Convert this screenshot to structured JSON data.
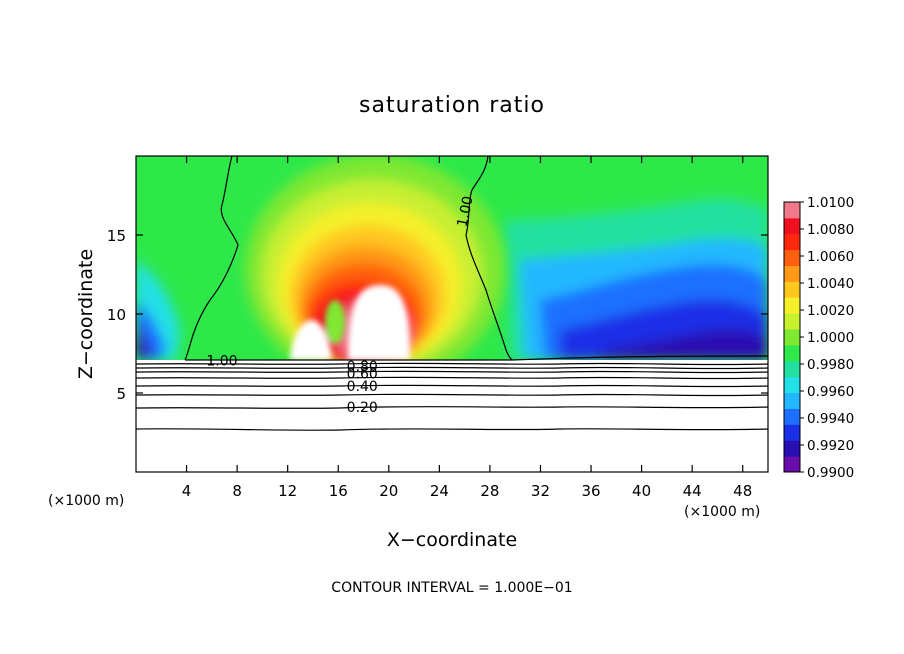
{
  "chart_data": {
    "type": "heatmap",
    "title": "saturation ratio",
    "xlabel": "X−coordinate",
    "ylabel": "Z−coordinate",
    "x_unit_left": "(×1000 m)",
    "x_unit_right": "(×1000 m)",
    "xlim": [
      0,
      50
    ],
    "ylim": [
      0,
      20
    ],
    "x_ticks": [
      4,
      8,
      12,
      16,
      20,
      24,
      28,
      32,
      36,
      40,
      44,
      48
    ],
    "y_ticks": [
      5,
      10,
      15
    ],
    "colorbar": {
      "min": 0.99,
      "max": 1.01,
      "tick_labels": [
        "1.0100",
        "1.0080",
        "1.0060",
        "1.0040",
        "1.0020",
        "1.0000",
        "0.9980",
        "0.9960",
        "0.9940",
        "0.9920",
        "0.9900"
      ],
      "colors": [
        "#6a0dad",
        "#2a0fb0",
        "#1a2fe6",
        "#1e6fff",
        "#22b8ff",
        "#22e0e6",
        "#24e0a0",
        "#2ee84a",
        "#7fe830",
        "#c8ef30",
        "#f5f02a",
        "#ffc820",
        "#ff9918",
        "#ff6010",
        "#ff2a10",
        "#f01020",
        "#f0788a"
      ]
    },
    "contour_labels": [
      {
        "text": "1.00",
        "x": 6.8,
        "y": 7.05
      },
      {
        "text": "1.00",
        "x": 26.0,
        "y": 16.5
      },
      {
        "text": "0.80",
        "x": 17.9,
        "y": 6.7
      },
      {
        "text": "0.60",
        "x": 17.9,
        "y": 6.25
      },
      {
        "text": "0.40",
        "x": 17.9,
        "y": 5.45
      },
      {
        "text": "0.20",
        "x": 17.9,
        "y": 4.1
      }
    ],
    "footer": "CONTOUR INTERVAL = 1.000E−01"
  }
}
